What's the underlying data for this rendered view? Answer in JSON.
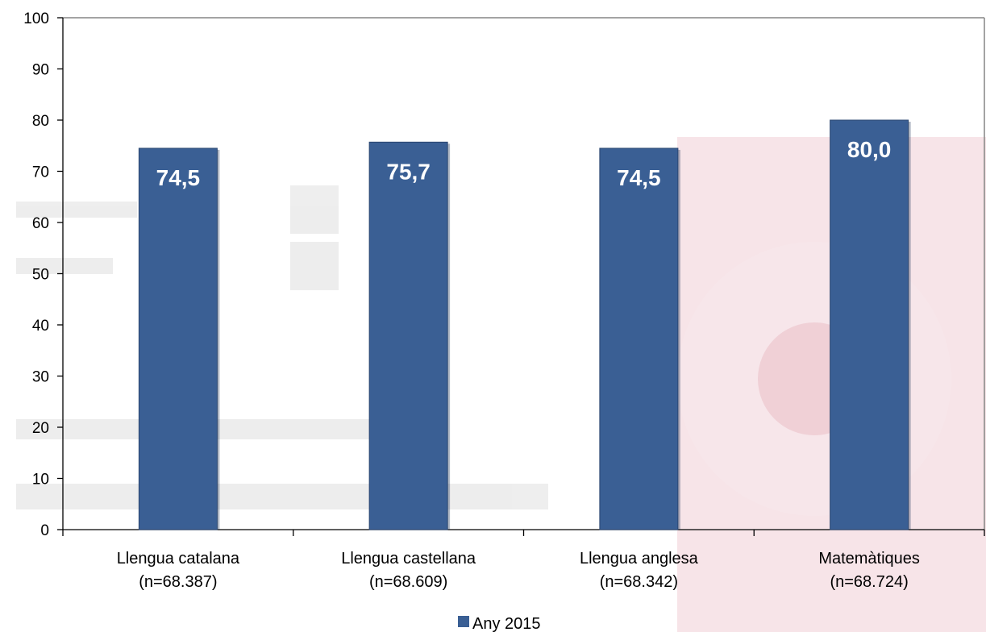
{
  "chart_data": {
    "type": "bar",
    "categories": [
      "Llengua catalana (n=68.387)",
      "Llengua castellana (n=68.609)",
      "Llengua anglesa (n=68.342)",
      "Matemàtiques (n=68.724)"
    ],
    "category_lines": [
      [
        "Llengua catalana",
        "(n=68.387)"
      ],
      [
        "Llengua castellana",
        "(n=68.609)"
      ],
      [
        "Llengua anglesa",
        "(n=68.342)"
      ],
      [
        "Matemàtiques",
        "(n=68.724)"
      ]
    ],
    "series": [
      {
        "name": "Any 2015",
        "values": [
          74.5,
          75.7,
          74.5,
          80.0
        ],
        "data_labels": [
          "74,5",
          "75,7",
          "74,5",
          "80,0"
        ],
        "color": "#3a5f94"
      }
    ],
    "y_ticks": [
      "0",
      "10",
      "20",
      "30",
      "40",
      "50",
      "60",
      "70",
      "80",
      "90",
      "100"
    ],
    "ylim": [
      0,
      100
    ],
    "title": "",
    "xlabel": "",
    "ylabel": "",
    "grid": false,
    "legend_position": "bottom-center"
  }
}
